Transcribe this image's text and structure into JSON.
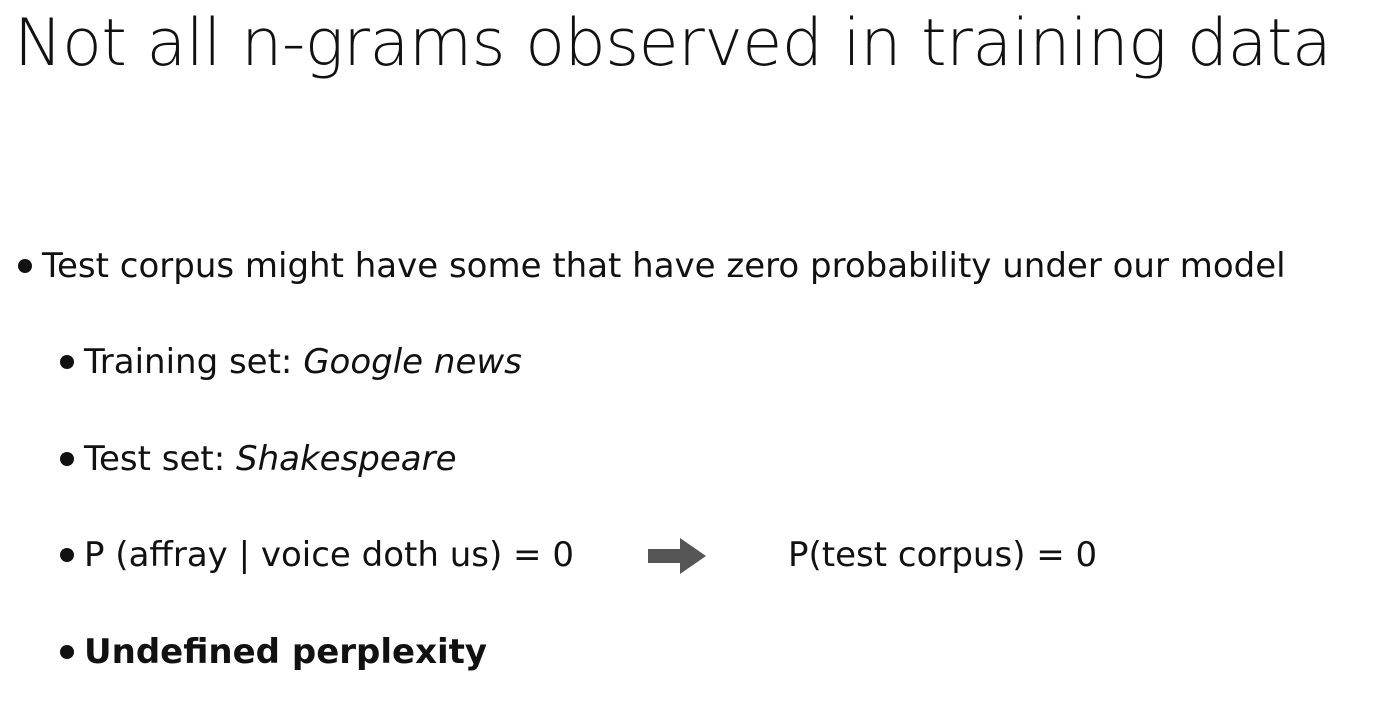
{
  "slide": {
    "title": "Not all n-grams observed in training data",
    "bullets": {
      "main": "Test corpus might have some that have zero probability under our model",
      "training_label": "Training set: ",
      "training_value": "Google news",
      "test_label": "Test set: ",
      "test_value": "Shakespeare",
      "probability_left": "P (affray | voice doth us) = 0",
      "probability_right": "P(test corpus) = 0",
      "conclusion": "Undefined perplexity"
    },
    "arrow_icon": "right-arrow-icon",
    "arrow_color": "#555555"
  }
}
